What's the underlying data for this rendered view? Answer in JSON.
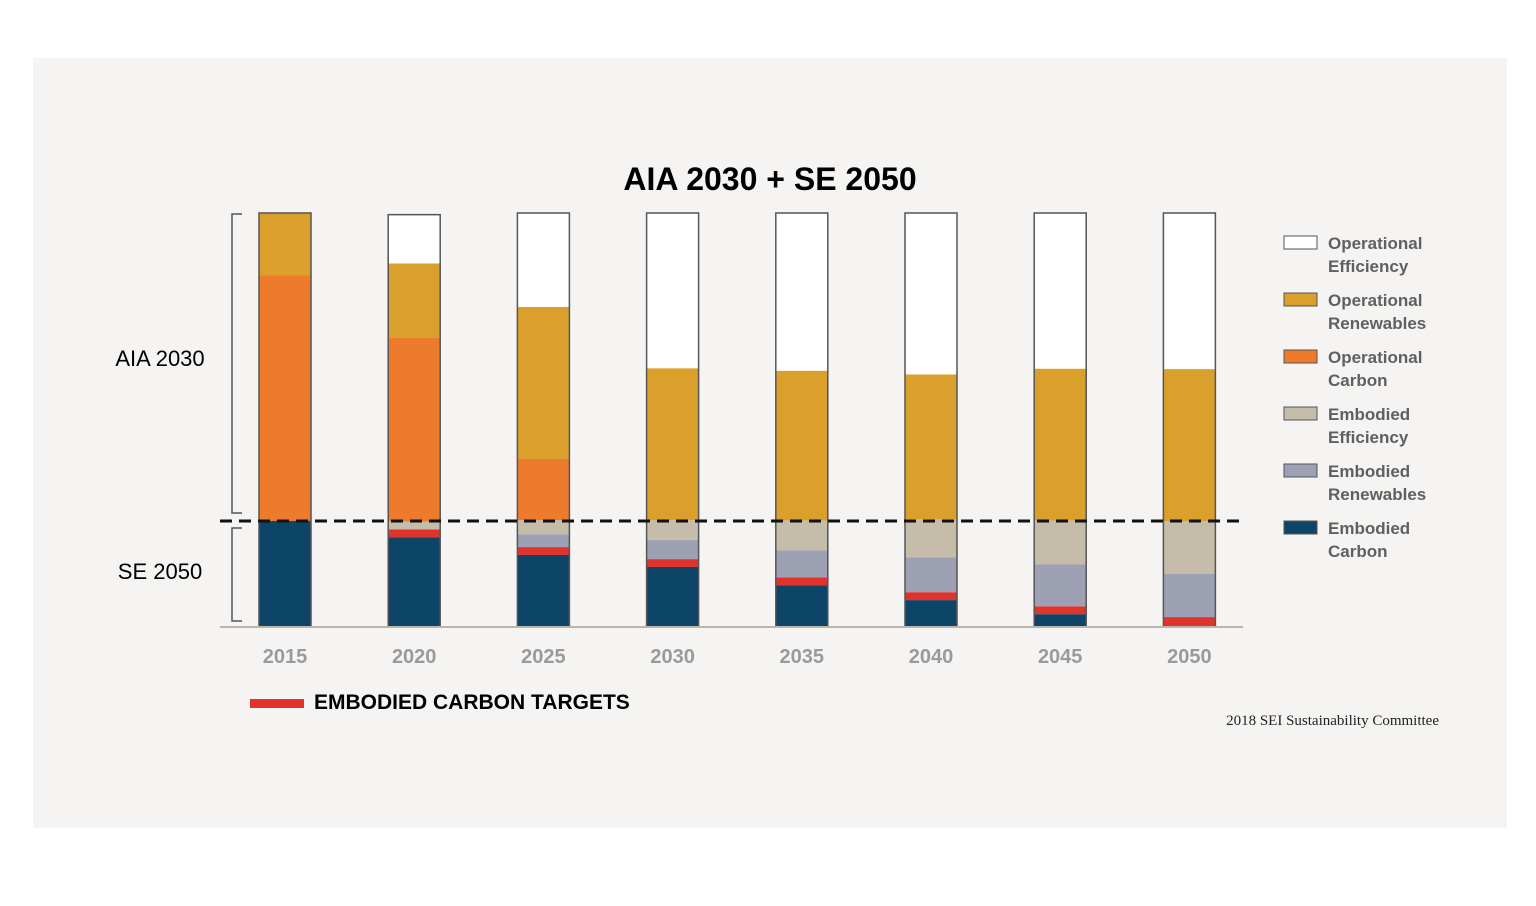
{
  "chart_data": {
    "type": "bar",
    "stacked": true,
    "title": "AIA 2030 + SE 2050",
    "categories": [
      "2015",
      "2020",
      "2025",
      "2030",
      "2035",
      "2040",
      "2045",
      "2050"
    ],
    "ylim": [
      0,
      100
    ],
    "series": [
      {
        "key": "embodied_carbon",
        "name": "Embodied Carbon",
        "color": "#0d4568",
        "values": [
          25.6,
          21.7,
          17.4,
          14.5,
          10.1,
          6.5,
          3.1,
          0
        ]
      },
      {
        "key": "embodied_target",
        "name": "Embodied Carbon Targets",
        "color": "#e0332b",
        "values": [
          0,
          1.9,
          1.9,
          1.9,
          1.9,
          1.9,
          1.9,
          2.4
        ]
      },
      {
        "key": "embodied_renewables",
        "name": "Embodied Renewables",
        "color": "#9ea0b4",
        "values": [
          0,
          0,
          3.1,
          4.6,
          6.5,
          8.4,
          10.1,
          10.4
        ]
      },
      {
        "key": "embodied_efficiency",
        "name": "Embodied Efficiency",
        "color": "#c5bcaa",
        "values": [
          0,
          1.9,
          3.4,
          4.8,
          7.2,
          9.2,
          10.6,
          12.8
        ]
      },
      {
        "key": "operational_carbon",
        "name": "Operational Carbon",
        "color": "#ee7a2c",
        "values": [
          59.4,
          44.4,
          14.8,
          0,
          0,
          0,
          0,
          0
        ]
      },
      {
        "key": "operational_renewables",
        "name": "Operational Renewables",
        "color": "#dba02b",
        "values": [
          15.0,
          17.9,
          36.7,
          36.7,
          36.2,
          35.0,
          36.7,
          36.7
        ]
      },
      {
        "key": "operational_efficiency",
        "name": "Operational Efficiency",
        "color": "#ffffff",
        "values": [
          0,
          11.8,
          22.7,
          37.5,
          38.1,
          39.0,
          37.6,
          37.7
        ]
      }
    ],
    "reference_line": {
      "value": 25.6,
      "style": "dashed"
    },
    "groups": {
      "upper": "AIA 2030",
      "lower": "SE 2050"
    },
    "legend": [
      {
        "line1": "Operational",
        "line2": "Efficiency",
        "color": "#ffffff"
      },
      {
        "line1": "Operational",
        "line2": "Renewables",
        "color": "#dba02b"
      },
      {
        "line1": "Operational",
        "line2": "Carbon",
        "color": "#ee7a2c"
      },
      {
        "line1": "Embodied",
        "line2": "Efficiency",
        "color": "#c5bcaa"
      },
      {
        "line1": "Embodied",
        "line2": "Renewables",
        "color": "#9ea0b4"
      },
      {
        "line1": "Embodied",
        "line2": "Carbon",
        "color": "#0d4568"
      }
    ],
    "targets_label": "EMBODIED CARBON TARGETS",
    "targets_color": "#e0332b",
    "credit": "2018 SEI Sustainability Committee"
  }
}
